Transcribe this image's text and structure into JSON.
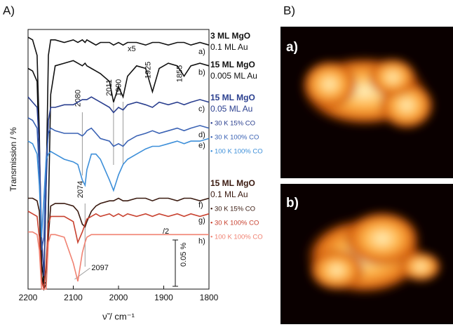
{
  "panel_labels": [
    "A)",
    "B)"
  ],
  "chart_data": {
    "type": "line",
    "xlabel": "ν̃ / cm⁻¹",
    "ylabel": "Transmission / %",
    "x": [
      2200,
      2190,
      2180,
      2175,
      2170,
      2165,
      2160,
      2155,
      2150,
      2140,
      2120,
      2100,
      2090,
      2080,
      2074,
      2070,
      2060,
      2050,
      2040,
      2020,
      2011,
      2000,
      1990,
      1980,
      1960,
      1940,
      1925,
      1910,
      1890,
      1870,
      1855,
      1840,
      1820,
      1800
    ],
    "xlim": [
      2200,
      1800
    ],
    "xticks": [
      2200,
      2100,
      2000,
      1900,
      1800
    ],
    "ylim": [
      0,
      100
    ],
    "series": [
      {
        "name": "a)",
        "color": "#111111",
        "values": [
          97,
          96,
          90,
          60,
          5,
          2,
          40,
          90,
          96,
          96,
          95,
          96,
          95,
          96,
          95,
          96,
          95,
          94,
          95,
          95,
          94,
          95,
          94,
          95,
          95,
          94,
          95,
          95,
          94,
          95,
          95,
          94,
          95,
          94
        ]
      },
      {
        "name": "b)",
        "color": "#111111",
        "values": [
          85,
          84,
          80,
          50,
          10,
          3,
          2,
          30,
          75,
          86,
          87,
          88,
          87,
          86,
          87,
          86,
          85,
          84,
          83,
          80,
          72,
          78,
          74,
          82,
          86,
          85,
          76,
          85,
          87,
          86,
          82,
          86,
          87,
          86
        ]
      },
      {
        "name": "c)",
        "color": "#2a3f8f",
        "values": [
          74,
          72,
          70,
          55,
          20,
          5,
          40,
          65,
          70,
          70,
          71,
          71,
          72,
          73,
          73,
          73,
          74,
          73,
          72,
          70,
          68,
          70,
          69,
          71,
          72,
          71,
          70,
          72,
          71,
          72,
          71,
          72,
          73,
          72
        ]
      },
      {
        "name": "d)",
        "color": "#3a62b4",
        "values": [
          66,
          65,
          62,
          45,
          15,
          20,
          50,
          60,
          62,
          61,
          60,
          60,
          60,
          59,
          60,
          61,
          62,
          60,
          58,
          57,
          55,
          56,
          55,
          57,
          59,
          60,
          61,
          60,
          61,
          62,
          61,
          62,
          63,
          62
        ]
      },
      {
        "name": "e)",
        "color": "#3d8fd9",
        "values": [
          57,
          56,
          52,
          40,
          20,
          35,
          50,
          52,
          53,
          52,
          50,
          49,
          48,
          42,
          40,
          46,
          52,
          52,
          50,
          42,
          38,
          44,
          48,
          50,
          52,
          54,
          55,
          55,
          56,
          57,
          56,
          57,
          57,
          58
        ]
      },
      {
        "name": "f)",
        "color": "#3a1a10",
        "values": [
          35,
          35,
          34,
          30,
          5,
          0,
          2,
          20,
          32,
          33,
          33,
          32,
          30,
          25,
          24,
          26,
          30,
          32,
          33,
          34,
          34,
          35,
          34,
          34,
          35,
          35,
          34,
          35,
          35,
          34,
          35,
          35,
          34,
          35
        ]
      },
      {
        "name": "g)",
        "color": "#c8412f",
        "values": [
          30,
          29,
          28,
          20,
          3,
          0,
          10,
          25,
          28,
          28,
          28,
          26,
          18,
          22,
          25,
          27,
          28,
          29,
          28,
          29,
          28,
          29,
          28,
          29,
          28,
          29,
          28,
          29,
          28,
          29,
          28,
          29,
          28,
          29
        ]
      },
      {
        "name": "h)",
        "color": "#f08272",
        "values": [
          22,
          22,
          21,
          15,
          0,
          0,
          0,
          18,
          21,
          21,
          20,
          10,
          3,
          14,
          18,
          20,
          21,
          21,
          21,
          21,
          21,
          21,
          21,
          21,
          21,
          21,
          21,
          21,
          21,
          21,
          21,
          21,
          21,
          21
        ]
      }
    ],
    "peaks": [
      2080,
      2011,
      1990,
      1925,
      1855,
      2074,
      2097
    ],
    "annotations": [
      "x5",
      "/2",
      "0.05 %"
    ],
    "groups": [
      {
        "title": "3 ML MgO",
        "coverage": "0.1 ML Au",
        "color": "#111111",
        "conditions": []
      },
      {
        "title": "15 ML MgO",
        "coverage": "0.005 ML Au",
        "color": "#111111",
        "conditions": []
      },
      {
        "title": "15 ML MgO",
        "coverage": "0.05 ML Au",
        "color": "#2a3f8f",
        "conditions": [
          {
            "text": "• 30 K 15% CO",
            "color": "#2a3f8f"
          },
          {
            "text": "• 30 K 100% CO",
            "color": "#3a62b4"
          },
          {
            "text": "• 100 K 100% CO",
            "color": "#3d8fd9"
          }
        ]
      },
      {
        "title": "15 ML MgO",
        "coverage": "0.1 ML Au",
        "color": "#3a1a10",
        "conditions": [
          {
            "text": "• 30 K 15% CO",
            "color": "#3a1a10"
          },
          {
            "text": "• 30 K 100% CO",
            "color": "#c8412f"
          },
          {
            "text": "• 100 K 100% CO",
            "color": "#f08272"
          }
        ]
      }
    ]
  },
  "stm_images": [
    {
      "label": "a)"
    },
    {
      "label": "b)"
    }
  ]
}
